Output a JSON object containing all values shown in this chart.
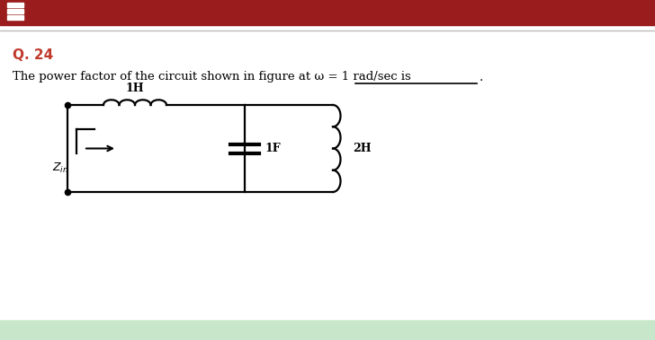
{
  "title_label": "Q. 24",
  "title_color": "#c0392b",
  "question_text": "The power factor of the circuit shown in figure at ω = 1 rad/sec is",
  "blank_underline": "___________",
  "period_text": ".",
  "header_bar_color": "#9b1c1c",
  "separator_color": "#bbbbbb",
  "bg_color": "#ffffff",
  "ind1_label": "1H",
  "cap_label": "1F",
  "ind2_label": "2H",
  "zin_label": "$Z_{in}$",
  "bottom_bar_color": "#c8e6c9"
}
